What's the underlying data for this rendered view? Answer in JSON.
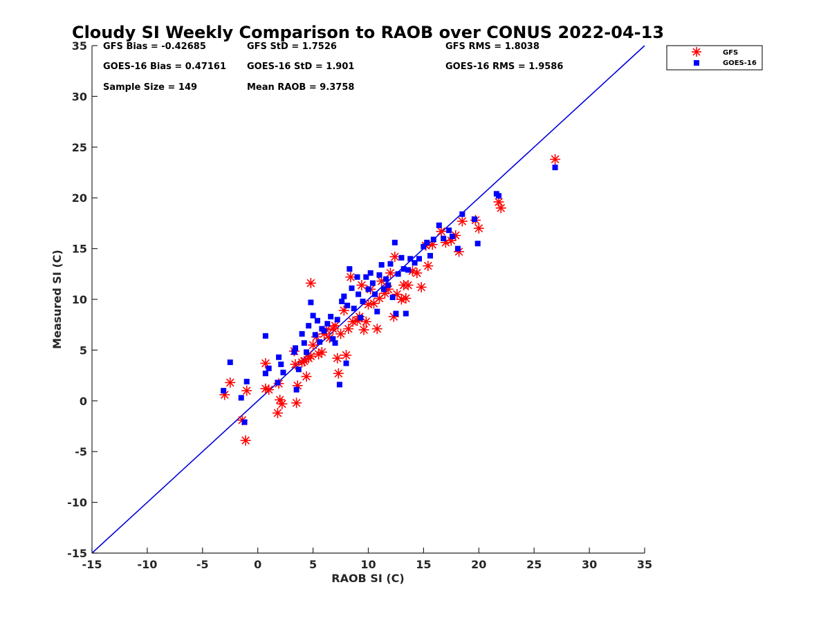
{
  "chart_data": {
    "type": "scatter",
    "title": "Cloudy SI Weekly Comparison to RAOB over CONUS 2022-04-13",
    "xlabel": "RAOB SI (C)",
    "ylabel": "Measured SI (C)",
    "xlim": [
      -15,
      35
    ],
    "ylim": [
      -15,
      35
    ],
    "xticks": [
      "-15",
      "-10",
      "-5",
      "0",
      "5",
      "10",
      "15",
      "20",
      "25",
      "30",
      "35"
    ],
    "yticks": [
      "-15",
      "-10",
      "-5",
      "0",
      "5",
      "10",
      "15",
      "20",
      "25",
      "30",
      "35"
    ],
    "grid": false,
    "legend_position": "top-right, outside plot",
    "stats": [
      {
        "id": "gfs_bias",
        "text": "GFS Bias = -0.42685"
      },
      {
        "id": "gfs_std",
        "text": "GFS StD = 1.7526"
      },
      {
        "id": "gfs_rms",
        "text": "GFS RMS = 1.8038"
      },
      {
        "id": "goes_bias",
        "text": "GOES-16 Bias = 0.47161"
      },
      {
        "id": "goes_std",
        "text": "GOES-16 StD = 1.901"
      },
      {
        "id": "goes_rms",
        "text": "GOES-16 RMS = 1.9586"
      },
      {
        "id": "sample_size",
        "text": "Sample Size = 149"
      },
      {
        "id": "mean_raob",
        "text": "Mean RAOB = 9.3758"
      }
    ],
    "reference_line": {
      "x": [
        -15,
        35
      ],
      "y": [
        -15,
        35
      ],
      "color": "#0000dd"
    },
    "series": [
      {
        "name": "GFS",
        "marker": "asterisk",
        "color": "#ff0000",
        "points": [
          [
            -3.0,
            0.6
          ],
          [
            -2.5,
            1.8
          ],
          [
            -1.4,
            -1.9
          ],
          [
            -1.1,
            -3.9
          ],
          [
            -1.0,
            1.0
          ],
          [
            0.7,
            3.7
          ],
          [
            0.7,
            1.2
          ],
          [
            1.0,
            1.1
          ],
          [
            1.8,
            -1.2
          ],
          [
            1.9,
            1.7
          ],
          [
            2.0,
            0.1
          ],
          [
            2.2,
            -0.3
          ],
          [
            3.4,
            3.6
          ],
          [
            3.5,
            -0.2
          ],
          [
            3.6,
            1.5
          ],
          [
            3.3,
            4.9
          ],
          [
            4.0,
            3.8
          ],
          [
            4.2,
            3.9
          ],
          [
            4.4,
            2.4
          ],
          [
            4.6,
            4.2
          ],
          [
            4.8,
            4.4
          ],
          [
            4.8,
            11.6
          ],
          [
            5.0,
            5.5
          ],
          [
            5.3,
            6.3
          ],
          [
            5.5,
            4.6
          ],
          [
            5.8,
            4.8
          ],
          [
            6.0,
            6.6
          ],
          [
            6.2,
            7.0
          ],
          [
            6.5,
            6.2
          ],
          [
            6.8,
            7.1
          ],
          [
            7.0,
            7.4
          ],
          [
            7.2,
            4.2
          ],
          [
            7.3,
            2.7
          ],
          [
            7.5,
            6.6
          ],
          [
            7.8,
            8.9
          ],
          [
            8.0,
            4.5
          ],
          [
            8.2,
            7.1
          ],
          [
            8.4,
            12.2
          ],
          [
            8.6,
            7.8
          ],
          [
            9.0,
            7.9
          ],
          [
            9.2,
            8.3
          ],
          [
            9.4,
            11.4
          ],
          [
            9.6,
            7.0
          ],
          [
            9.8,
            7.8
          ],
          [
            10.0,
            9.5
          ],
          [
            10.2,
            11.0
          ],
          [
            10.5,
            9.6
          ],
          [
            10.8,
            7.1
          ],
          [
            11.0,
            10.1
          ],
          [
            11.2,
            11.8
          ],
          [
            11.5,
            10.6
          ],
          [
            11.8,
            11.0
          ],
          [
            12.0,
            12.6
          ],
          [
            12.3,
            8.3
          ],
          [
            12.4,
            14.2
          ],
          [
            12.6,
            10.5
          ],
          [
            13.0,
            10.0
          ],
          [
            13.2,
            11.4
          ],
          [
            13.4,
            10.1
          ],
          [
            13.6,
            11.4
          ],
          [
            14.0,
            12.8
          ],
          [
            14.4,
            12.6
          ],
          [
            14.8,
            11.2
          ],
          [
            15.2,
            15.3
          ],
          [
            15.4,
            13.3
          ],
          [
            15.8,
            15.4
          ],
          [
            16.6,
            16.7
          ],
          [
            17.0,
            15.6
          ],
          [
            17.5,
            15.8
          ],
          [
            17.9,
            16.3
          ],
          [
            18.2,
            14.7
          ],
          [
            18.5,
            17.7
          ],
          [
            19.7,
            17.8
          ],
          [
            20.0,
            17.0
          ],
          [
            21.8,
            19.6
          ],
          [
            22.0,
            19.0
          ],
          [
            26.9,
            23.8
          ]
        ]
      },
      {
        "name": "GOES-16",
        "marker": "square",
        "color": "#0000ff",
        "points": [
          [
            -3.1,
            1.0
          ],
          [
            -2.5,
            3.8
          ],
          [
            -1.5,
            0.3
          ],
          [
            -1.2,
            -2.1
          ],
          [
            -1.0,
            1.9
          ],
          [
            0.7,
            6.4
          ],
          [
            0.7,
            2.7
          ],
          [
            1.0,
            3.2
          ],
          [
            1.8,
            1.8
          ],
          [
            1.9,
            4.3
          ],
          [
            2.1,
            3.6
          ],
          [
            2.3,
            2.8
          ],
          [
            3.4,
            5.2
          ],
          [
            3.5,
            1.1
          ],
          [
            3.7,
            3.1
          ],
          [
            3.3,
            4.8
          ],
          [
            4.0,
            6.6
          ],
          [
            4.2,
            5.7
          ],
          [
            4.4,
            4.8
          ],
          [
            4.6,
            7.4
          ],
          [
            4.8,
            9.7
          ],
          [
            5.0,
            8.4
          ],
          [
            5.2,
            6.5
          ],
          [
            5.4,
            7.9
          ],
          [
            5.6,
            5.8
          ],
          [
            5.8,
            7.1
          ],
          [
            6.0,
            6.9
          ],
          [
            6.3,
            7.6
          ],
          [
            6.6,
            8.3
          ],
          [
            6.8,
            6.1
          ],
          [
            7.0,
            5.7
          ],
          [
            7.2,
            8.0
          ],
          [
            7.4,
            1.6
          ],
          [
            7.6,
            9.8
          ],
          [
            7.8,
            10.3
          ],
          [
            8.0,
            3.7
          ],
          [
            8.1,
            9.4
          ],
          [
            8.3,
            13.0
          ],
          [
            8.5,
            11.1
          ],
          [
            8.7,
            9.1
          ],
          [
            9.0,
            12.2
          ],
          [
            9.1,
            10.5
          ],
          [
            9.3,
            8.2
          ],
          [
            9.5,
            9.8
          ],
          [
            9.8,
            12.2
          ],
          [
            10.0,
            11.0
          ],
          [
            10.2,
            12.6
          ],
          [
            10.4,
            11.6
          ],
          [
            10.6,
            10.5
          ],
          [
            10.8,
            8.8
          ],
          [
            11.0,
            12.4
          ],
          [
            11.2,
            13.4
          ],
          [
            11.4,
            11.0
          ],
          [
            11.6,
            12.0
          ],
          [
            11.8,
            11.4
          ],
          [
            12.0,
            13.5
          ],
          [
            12.2,
            10.2
          ],
          [
            12.4,
            15.6
          ],
          [
            12.5,
            8.6
          ],
          [
            12.7,
            12.5
          ],
          [
            13.0,
            14.1
          ],
          [
            13.2,
            13.0
          ],
          [
            13.4,
            8.6
          ],
          [
            13.6,
            12.9
          ],
          [
            13.8,
            14.0
          ],
          [
            14.2,
            13.6
          ],
          [
            14.6,
            14.0
          ],
          [
            15.0,
            15.2
          ],
          [
            15.3,
            15.6
          ],
          [
            15.6,
            14.3
          ],
          [
            15.9,
            15.9
          ],
          [
            16.4,
            17.3
          ],
          [
            16.8,
            16.0
          ],
          [
            17.3,
            16.8
          ],
          [
            17.6,
            16.2
          ],
          [
            18.1,
            15.0
          ],
          [
            18.5,
            18.4
          ],
          [
            19.6,
            17.9
          ],
          [
            19.9,
            15.5
          ],
          [
            21.6,
            20.4
          ],
          [
            21.8,
            20.2
          ],
          [
            26.9,
            23.0
          ]
        ]
      }
    ]
  }
}
